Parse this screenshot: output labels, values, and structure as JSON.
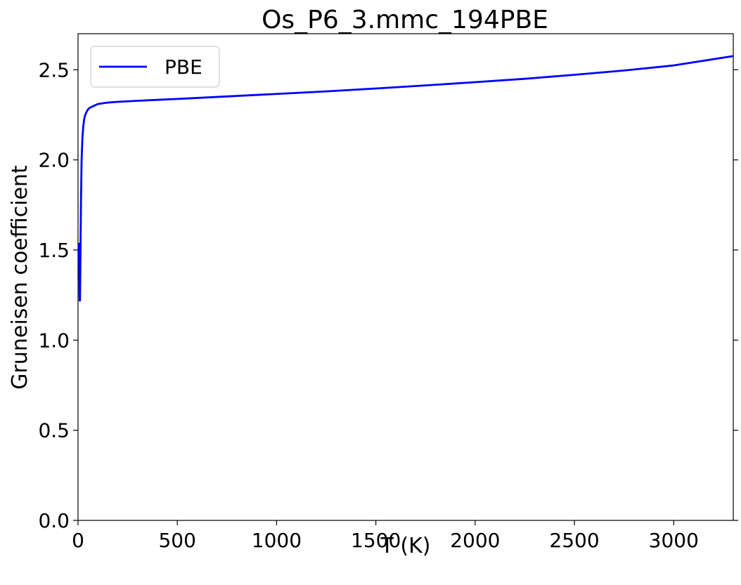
{
  "chart_data": {
    "type": "line",
    "title": "Os_P6_3.mmc_194PBE",
    "xlabel": "T (K)",
    "ylabel": "Gruneisen coefficient",
    "xlim": [
      0,
      3300
    ],
    "ylim": [
      0,
      2.7
    ],
    "xticks": [
      0,
      500,
      1000,
      1500,
      2000,
      2500,
      3000
    ],
    "yticks": [
      0.0,
      0.5,
      1.0,
      1.5,
      2.0,
      2.5
    ],
    "xtick_labels": [
      "0",
      "500",
      "1000",
      "1500",
      "2000",
      "2500",
      "3000"
    ],
    "ytick_labels": [
      "0.0",
      "0.5",
      "1.0",
      "1.5",
      "2.0",
      "2.5"
    ],
    "grid": false,
    "legend_position": "top-left",
    "series": [
      {
        "name": "PBE",
        "color": "#0000ff",
        "x": [
          5,
          8,
          10,
          12,
          15,
          18,
          22,
          26,
          30,
          35,
          40,
          50,
          60,
          80,
          100,
          150,
          200,
          300,
          400,
          500,
          750,
          1000,
          1250,
          1500,
          1750,
          2000,
          2250,
          2500,
          2750,
          3000,
          3300
        ],
        "y": [
          1.54,
          1.22,
          1.22,
          1.45,
          1.78,
          2.0,
          2.12,
          2.18,
          2.22,
          2.245,
          2.26,
          2.28,
          2.29,
          2.3,
          2.31,
          2.318,
          2.322,
          2.328,
          2.333,
          2.338,
          2.352,
          2.366,
          2.38,
          2.396,
          2.413,
          2.431,
          2.45,
          2.472,
          2.496,
          2.524,
          2.576
        ]
      }
    ]
  }
}
